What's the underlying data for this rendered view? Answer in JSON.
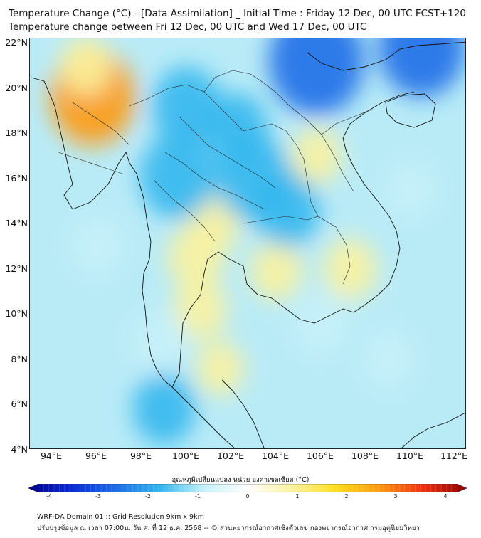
{
  "title_line1": "Temperature Change (°C) - [Data Assimilation] _ Initial Time : Friday 12 Dec, 00 UTC FCST+120",
  "title_line2": "Temperature change between Fri 12 Dec, 00 UTC and Wed 17 Dec, 00 UTC",
  "lat_labels": [
    "22°N",
    "20°N",
    "18°N",
    "16°N",
    "14°N",
    "12°N",
    "10°N",
    "8°N",
    "6°N",
    "4°N"
  ],
  "lon_labels": [
    "94°E",
    "96°E",
    "98°E",
    "100°E",
    "102°E",
    "104°E",
    "106°E",
    "108°E",
    "110°E",
    "112°E"
  ],
  "map_extent": {
    "lon_min": 93,
    "lon_max": 112.5,
    "lat_min": 4,
    "lat_max": 22.2
  },
  "colorbar": {
    "title": "อุณหภูมิเปลี่ยนแปลง หน่วย องศาเซลเซียส (°C)",
    "ticks": [
      "-4",
      "-3",
      "-2",
      "-1",
      "0",
      "1",
      "2",
      "3",
      "4"
    ],
    "range": [
      -4,
      4
    ],
    "colors": [
      "#00008a",
      "#0a2cd8",
      "#1e6ee8",
      "#33b7ee",
      "#c6f1fa",
      "#ffffff",
      "#fbf2a0",
      "#ffe020",
      "#ff9a10",
      "#f03010",
      "#8b0000"
    ]
  },
  "footer_line1": "WRF-DA Domain 01 :: Grid Resolution 9km x 9km",
  "footer_line2": "ปรับปรุงข้อมูล ณ เวลา 07:00น. วัน ศ. ที่ 12 ธ.ค. 2568 -- © ส่วนพยากรณ์อากาศเชิงตัวเลข กองพยากรณ์อากาศ กรมอุตุนิยมวิทยา",
  "field_anomalies": [
    {
      "lon": 95.8,
      "lat": 19.6,
      "value": 2.3
    },
    {
      "lon": 95.5,
      "lat": 21.0,
      "value": 0.8
    },
    {
      "lon": 100.4,
      "lat": 12.5,
      "value": 1.0
    },
    {
      "lon": 100.6,
      "lat": 10.2,
      "value": 0.9
    },
    {
      "lon": 101.2,
      "lat": 14.0,
      "value": 0.8
    },
    {
      "lon": 104.0,
      "lat": 11.9,
      "value": 0.8
    },
    {
      "lon": 105.8,
      "lat": 17.0,
      "value": 0.7
    },
    {
      "lon": 107.3,
      "lat": 12.0,
      "value": 0.9
    },
    {
      "lon": 101.5,
      "lat": 7.6,
      "value": 0.6
    },
    {
      "lon": 99.6,
      "lat": 16.1,
      "value": -1.9
    },
    {
      "lon": 103.0,
      "lat": 16.0,
      "value": -1.9
    },
    {
      "lon": 100.0,
      "lat": 19.2,
      "value": -1.6
    },
    {
      "lon": 102.2,
      "lat": 18.2,
      "value": -1.3
    },
    {
      "lon": 105.8,
      "lat": 21.2,
      "value": -2.8
    },
    {
      "lon": 110.5,
      "lat": 21.8,
      "value": -2.4
    },
    {
      "lon": 104.5,
      "lat": 14.6,
      "value": -1.4
    },
    {
      "lon": 106.0,
      "lat": 9.6,
      "value": -1.0
    },
    {
      "lon": 98.8,
      "lat": 8.8,
      "value": -1.0
    },
    {
      "lon": 99.0,
      "lat": 5.8,
      "value": -1.3
    },
    {
      "lon": 96.0,
      "lat": 13.0,
      "value": -0.8
    },
    {
      "lon": 110.0,
      "lat": 15.5,
      "value": -0.7
    },
    {
      "lon": 109.0,
      "lat": 8.0,
      "value": -0.8
    }
  ]
}
